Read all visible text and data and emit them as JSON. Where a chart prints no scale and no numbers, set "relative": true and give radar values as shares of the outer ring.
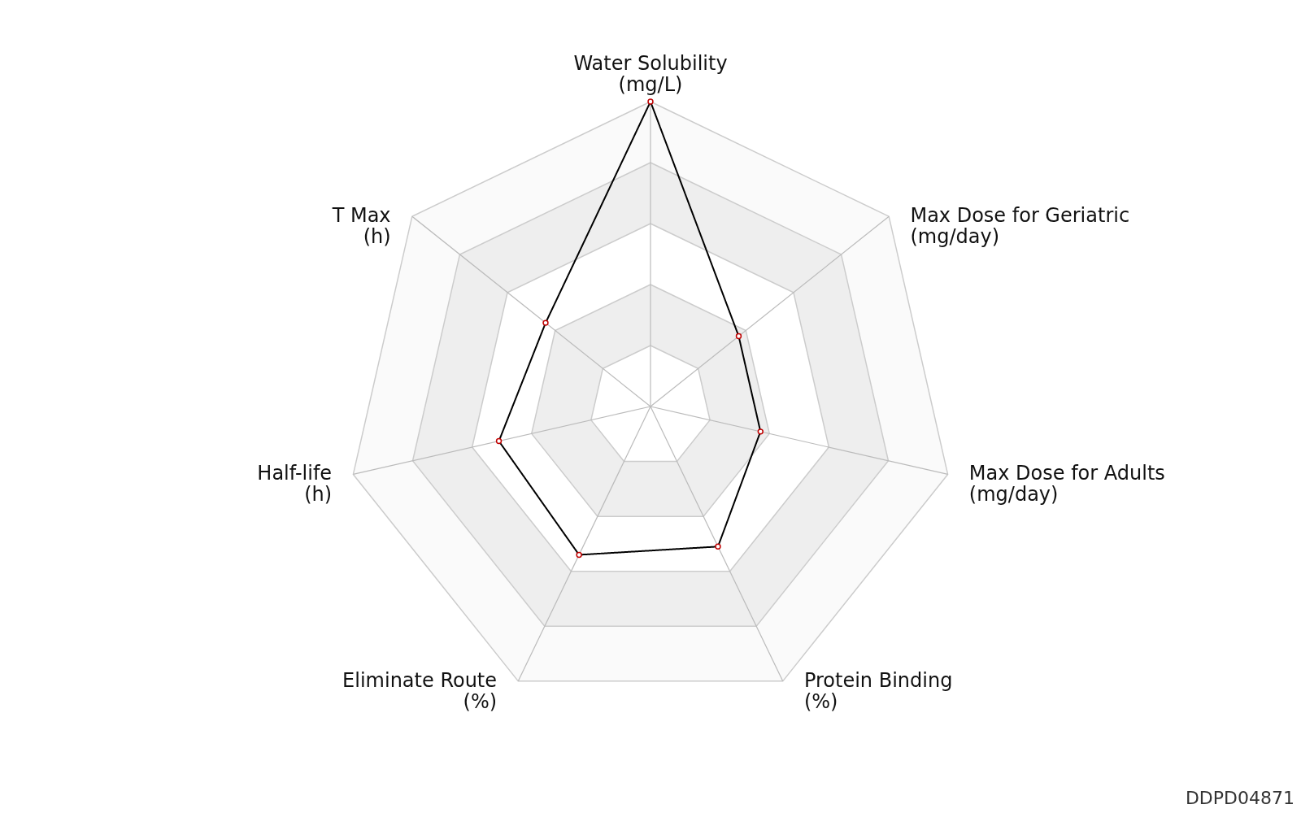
{
  "chart_data": {
    "type": "radar",
    "relative": true,
    "grid": true,
    "marker": "circle",
    "line_style": "solid",
    "categories": [
      "Water Solubility\n(mg/L)",
      "Max Dose for Geriatric\n(mg/day)",
      "Max Dose for Adults\n(mg/day)",
      "Protein Binding\n(%)",
      "Eliminate Route\n(%)",
      "Half-life\n(h)",
      "T Max\n(h)"
    ],
    "series": [
      {
        "color": "#000000",
        "values": [
          1.0,
          0.37,
          0.37,
          0.51,
          0.54,
          0.51,
          0.44
        ]
      }
    ],
    "annotations": [
      "DDPD04871"
    ]
  }
}
